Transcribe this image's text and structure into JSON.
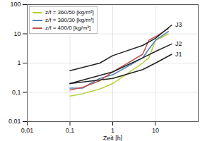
{
  "chart_data": {
    "type": "line",
    "log": true,
    "grid": true,
    "legend": "top-left",
    "x_label": "Zeit [h]",
    "xlim": [
      0.01,
      100
    ],
    "xticks": [
      {
        "value": 0.01,
        "label": "0,01"
      },
      {
        "value": 0.1,
        "label": "0,1"
      },
      1,
      10
    ],
    "ylim": [
      0.01,
      100
    ],
    "yticks": [
      {
        "value": 0.01,
        "label": "0,01"
      },
      {
        "value": 0.1,
        "label": "0,1"
      },
      1,
      10,
      100
    ],
    "series": [
      {
        "name": "z/f = 360/50 [kg/m³]",
        "color": "#b3d235",
        "x": [
          0.1,
          0.2,
          0.5,
          1,
          2,
          5,
          7,
          10,
          20
        ],
        "values": [
          0.075,
          0.09,
          0.13,
          0.2,
          0.4,
          1.0,
          1.5,
          6,
          10
        ]
      },
      {
        "name": "z/f = 380/30 [kg/m³]",
        "color": "#4f81bd",
        "x": [
          0.1,
          0.2,
          0.3,
          0.5,
          1,
          2,
          5,
          7,
          10,
          20
        ],
        "values": [
          0.14,
          0.14,
          0.2,
          0.3,
          0.4,
          0.7,
          1.5,
          3,
          6,
          12
        ]
      },
      {
        "name": "z/f = 400/0 [kg/m³]",
        "color": "#c0504d",
        "x": [
          0.1,
          0.2,
          0.5,
          1,
          2,
          5,
          7,
          10,
          20
        ],
        "values": [
          0.12,
          0.15,
          0.25,
          0.5,
          0.9,
          2,
          6,
          8,
          15
        ]
      },
      {
        "name": "J1",
        "color": "#222222",
        "legend": false,
        "x": [
          0.1,
          1,
          5,
          10,
          24
        ],
        "values": [
          0.2,
          0.3,
          0.6,
          1,
          2
        ]
      },
      {
        "name": "J2",
        "color": "#222222",
        "legend": false,
        "x": [
          0.1,
          1,
          5,
          10,
          24
        ],
        "values": [
          0.2,
          0.5,
          1.5,
          2.5,
          4.5
        ]
      },
      {
        "name": "J3",
        "color": "#222222",
        "legend": false,
        "x": [
          0.1,
          0.5,
          1,
          5,
          10,
          24
        ],
        "values": [
          0.55,
          1,
          1.8,
          4,
          7,
          20
        ]
      }
    ]
  }
}
